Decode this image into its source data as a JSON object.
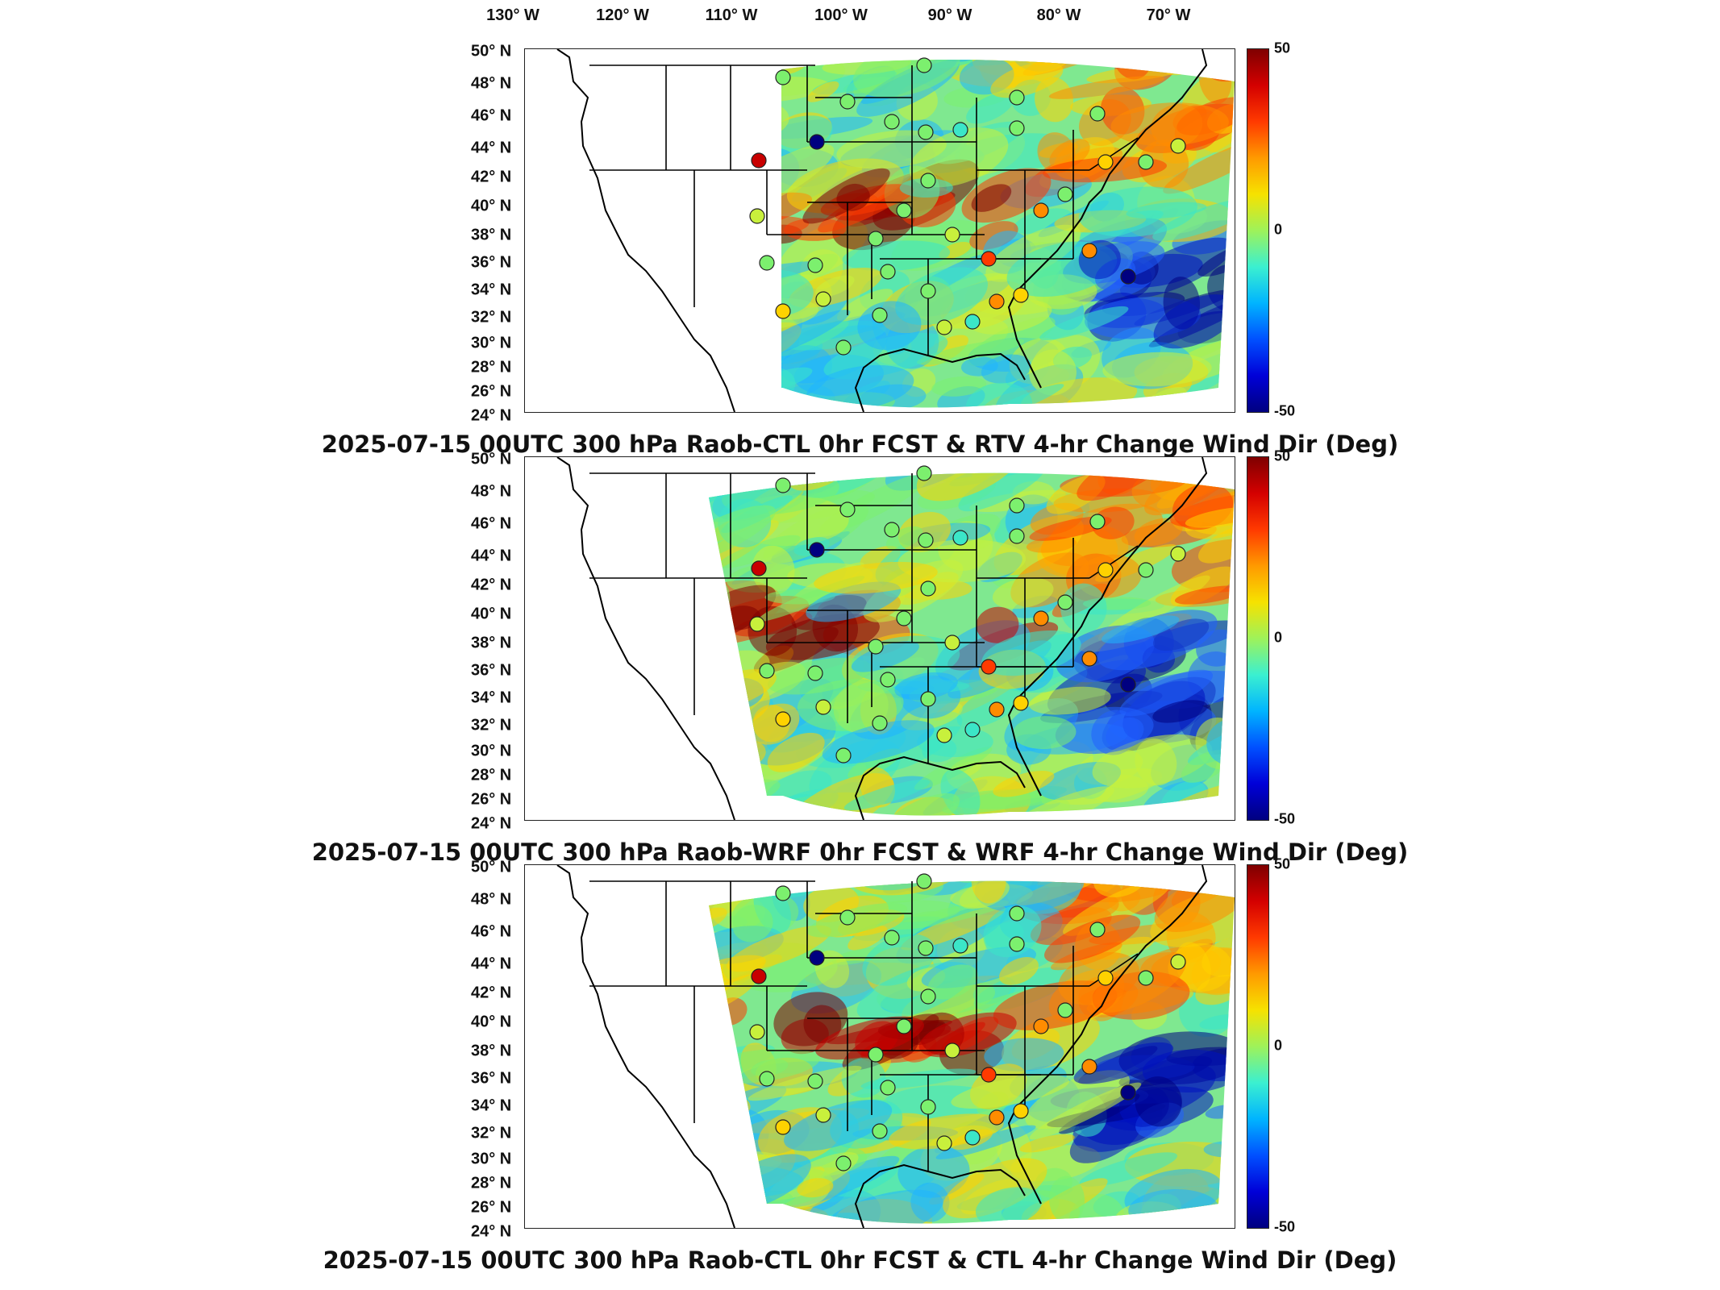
{
  "longitude_labels": [
    "130° W",
    "120° W",
    "110° W",
    "100° W",
    "90° W",
    "80° W",
    "70° W"
  ],
  "latitude_labels": [
    "50° N",
    "48° N",
    "46° N",
    "44° N",
    "42° N",
    "40° N",
    "38° N",
    "36° N",
    "34° N",
    "32° N",
    "30° N",
    "28° N",
    "26° N",
    "24° N"
  ],
  "colorbar": {
    "max_label": "50",
    "mid_label": "0",
    "min_label": "-50",
    "range": [
      -50,
      50
    ]
  },
  "colors": {
    "high": "#7f0000",
    "mid": "#9ef25a",
    "low": "#000080"
  },
  "panels": [
    {
      "title": "2025-07-15 00UTC 300 hPa Raob-CTL 0hr FCST & RTV 4-hr Change Wind Dir (Deg)"
    },
    {
      "title": "2025-07-15 00UTC 300 hPa Raob-WRF 0hr FCST & WRF 4-hr Change Wind Dir (Deg)"
    },
    {
      "title": "2025-07-15 00UTC 300 hPa Raob-CTL 0hr FCST & CTL 4-hr Change Wind Dir (Deg)"
    }
  ]
}
